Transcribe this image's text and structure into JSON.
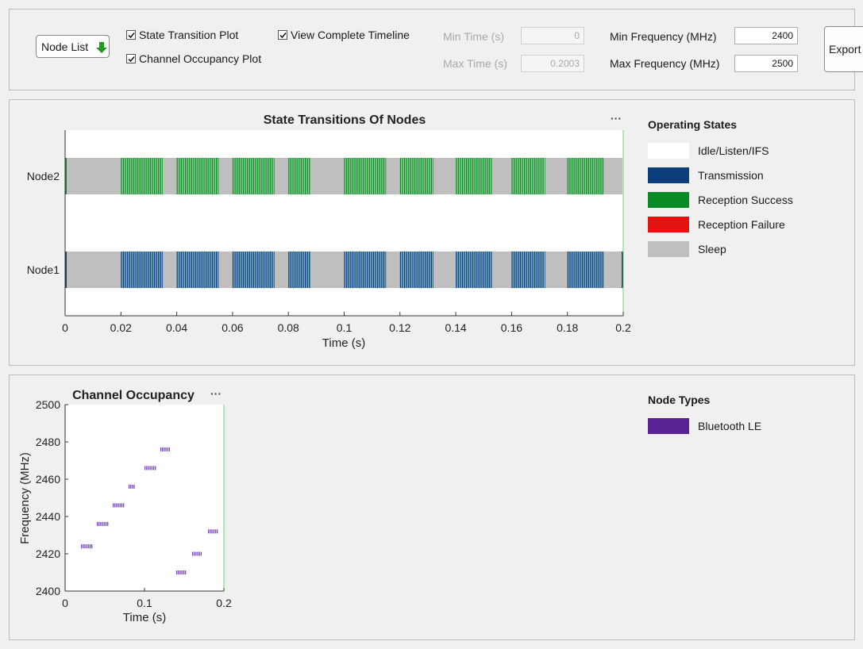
{
  "controls": {
    "node_list_label": "Node List",
    "state_transition_label": "State Transition Plot",
    "state_transition_checked": true,
    "channel_occupancy_label": "Channel Occupancy Plot",
    "channel_occupancy_checked": true,
    "view_timeline_label": "View Complete Timeline",
    "view_timeline_checked": true,
    "min_time_label": "Min Time (s)",
    "min_time_value": "0",
    "max_time_label": "Max Time (s)",
    "max_time_value": "0.2003",
    "min_freq_label": "Min Frequency (MHz)",
    "min_freq_value": "2400",
    "max_freq_label": "Max Frequency (MHz)",
    "max_freq_value": "2500",
    "export_label": "Export"
  },
  "state_plot": {
    "title": "State Transitions Of Nodes",
    "more_label": "···",
    "xlabel": "Time (s)",
    "x_ticks": [
      "0",
      "0.02",
      "0.04",
      "0.06",
      "0.08",
      "0.1",
      "0.12",
      "0.14",
      "0.16",
      "0.18",
      "0.2"
    ],
    "nodes": [
      "Node2",
      "Node1"
    ]
  },
  "operating_states": {
    "title": "Operating States",
    "items": [
      {
        "label": "Idle/Listen/IFS",
        "color": "#ffffff"
      },
      {
        "label": "Transmission",
        "color": "#0e3d7b"
      },
      {
        "label": "Reception Success",
        "color": "#0a8a24"
      },
      {
        "label": "Reception Failure",
        "color": "#e3140f"
      },
      {
        "label": "Sleep",
        "color": "#bfbfbf"
      }
    ]
  },
  "channel_plot": {
    "title": "Channel Occupancy",
    "more_label": "···",
    "xlabel": "Time (s)",
    "ylabel": "Frequency (MHz)",
    "x_ticks": [
      "0",
      "0.1",
      "0.2"
    ],
    "y_ticks": [
      "2400",
      "2420",
      "2440",
      "2460",
      "2480",
      "2500"
    ]
  },
  "node_types": {
    "title": "Node Types",
    "items": [
      {
        "label": "Bluetooth LE",
        "color": "#5b2296"
      }
    ]
  },
  "chart_data": [
    {
      "type": "bar",
      "title": "State Transitions Of Nodes",
      "xlabel": "Time (s)",
      "ylabel": "",
      "xlim": [
        0,
        0.2
      ],
      "categories": [
        "Node2",
        "Node1"
      ],
      "bursts": [
        {
          "start": 0.02,
          "end": 0.035
        },
        {
          "start": 0.04,
          "end": 0.055
        },
        {
          "start": 0.06,
          "end": 0.075
        },
        {
          "start": 0.08,
          "end": 0.088
        },
        {
          "start": 0.1,
          "end": 0.115
        },
        {
          "start": 0.12,
          "end": 0.132
        },
        {
          "start": 0.14,
          "end": 0.153
        },
        {
          "start": 0.16,
          "end": 0.172
        },
        {
          "start": 0.18,
          "end": 0.193
        }
      ],
      "series": [
        {
          "name": "Node2",
          "burst_state": "Reception Success",
          "gap_state": "Sleep"
        },
        {
          "name": "Node1",
          "burst_state": "Transmission",
          "gap_state": "Sleep"
        }
      ]
    },
    {
      "type": "scatter",
      "title": "Channel Occupancy",
      "xlabel": "Time (s)",
      "ylabel": "Frequency (MHz)",
      "xlim": [
        0,
        0.2
      ],
      "ylim": [
        2400,
        2500
      ],
      "series": [
        {
          "name": "Bluetooth LE",
          "segments": [
            {
              "start": 0.02,
              "end": 0.035,
              "freq": 2424
            },
            {
              "start": 0.04,
              "end": 0.055,
              "freq": 2436
            },
            {
              "start": 0.06,
              "end": 0.075,
              "freq": 2446
            },
            {
              "start": 0.08,
              "end": 0.088,
              "freq": 2456
            },
            {
              "start": 0.1,
              "end": 0.115,
              "freq": 2466
            },
            {
              "start": 0.12,
              "end": 0.132,
              "freq": 2476
            },
            {
              "start": 0.14,
              "end": 0.153,
              "freq": 2410
            },
            {
              "start": 0.16,
              "end": 0.172,
              "freq": 2420
            },
            {
              "start": 0.18,
              "end": 0.193,
              "freq": 2432
            }
          ]
        }
      ]
    }
  ]
}
